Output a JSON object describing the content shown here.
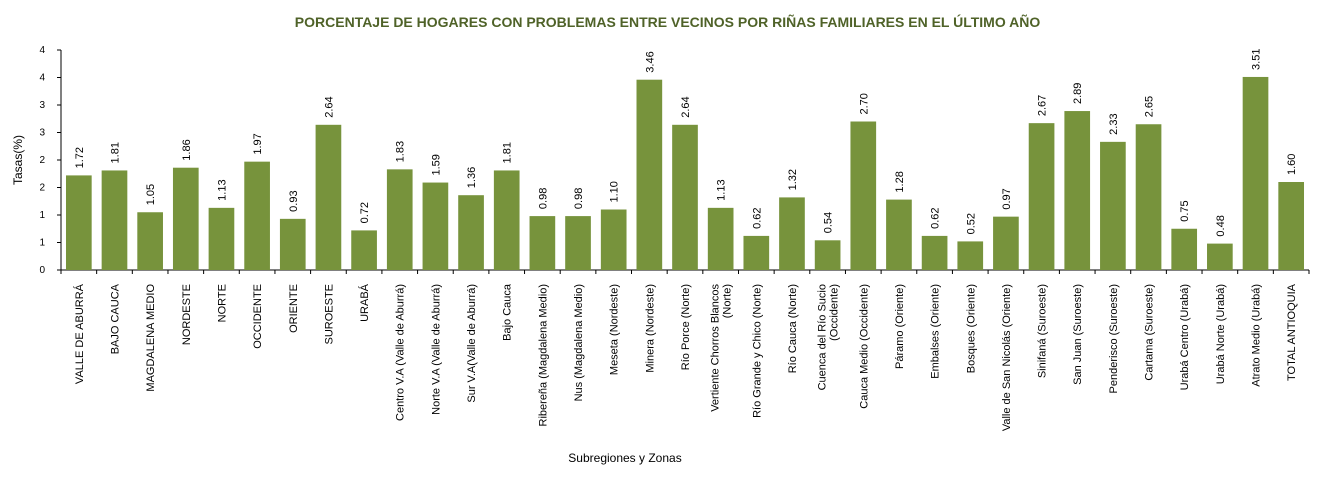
{
  "chart_data": {
    "type": "bar",
    "title": "PORCENTAJE DE HOGARES CON PROBLEMAS ENTRE VECINOS POR RIÑAS FAMILIARES EN EL ÚLTIMO AÑO",
    "xlabel": "Subregiones y Zonas",
    "ylabel": "Tasas(%)",
    "y_tick_labels": [
      "0",
      "1",
      "1",
      "2",
      "2",
      "3",
      "3",
      "4",
      "4"
    ],
    "ylim": [
      0,
      4
    ],
    "bar_color": "#77933c",
    "categories": [
      [
        "VALLE DE ABURRÁ"
      ],
      [
        "BAJO CAUCA"
      ],
      [
        "MAGDALENA MEDIO"
      ],
      [
        "NORDESTE"
      ],
      [
        "NORTE"
      ],
      [
        "OCCIDENTE"
      ],
      [
        "ORIENTE"
      ],
      [
        "SUROESTE"
      ],
      [
        "URABÁ"
      ],
      [
        "Centro V.A (Valle de Aburrá)"
      ],
      [
        "Norte V.A (Valle de Aburrá)"
      ],
      [
        "Sur V.A(Valle de Aburrá)"
      ],
      [
        "Bajo Cauca"
      ],
      [
        "Ribereña  (Magdalena Medio)"
      ],
      [
        "Nus  (Magdalena Medio)"
      ],
      [
        "Meseta  (Nordeste)"
      ],
      [
        "Minera  (Nordeste)"
      ],
      [
        "Río Porce   (Norte)"
      ],
      [
        "Vertiente Chorros Blancos",
        "(Norte)"
      ],
      [
        "Río Grande y Chico  (Norte)"
      ],
      [
        "Río Cauca  (Norte)"
      ],
      [
        "Cuenca del Río Sucio",
        "(Occidente)"
      ],
      [
        "Cauca Medio  (Occidente)"
      ],
      [
        "Páramo  (Oriente)"
      ],
      [
        "Embalses  (Oriente)"
      ],
      [
        "Bosques  (Oriente)"
      ],
      [
        "Valle de San Nicolás  (Oriente)"
      ],
      [
        "Sinifaná  (Suroeste)"
      ],
      [
        "San Juan  (Suroeste)"
      ],
      [
        "Penderisco  (Suroeste)"
      ],
      [
        "Cartama  (Suroeste)"
      ],
      [
        "Urabá Centro  (Urabá)"
      ],
      [
        "Urabá Norte  (Urabá)"
      ],
      [
        "Atrato Medio  (Urabá)"
      ],
      [
        "TOTAL ANTIOQUIA"
      ]
    ],
    "values": [
      1.72,
      1.81,
      1.05,
      1.86,
      1.13,
      1.97,
      0.93,
      2.64,
      0.72,
      1.83,
      1.59,
      1.36,
      1.81,
      0.98,
      0.98,
      1.1,
      3.46,
      2.64,
      1.13,
      0.62,
      1.32,
      0.54,
      2.7,
      1.28,
      0.62,
      0.52,
      0.97,
      2.67,
      2.89,
      2.33,
      2.65,
      0.75,
      0.48,
      3.51,
      1.6
    ],
    "data_labels": [
      "1.72",
      "1.81",
      "1.05",
      "1.86",
      "1.13",
      "1.97",
      "0.93",
      "2.64",
      "0.72",
      "1.83",
      "1.59",
      "1.36",
      "1.81",
      "0.98",
      "0.98",
      "1.10",
      "3.46",
      "2.64",
      "1.13",
      "0.62",
      "1.32",
      "0.54",
      "2.70",
      "1.28",
      "0.62",
      "0.52",
      "0.97",
      "2.67",
      "2.89",
      "2.33",
      "2.65",
      "0.75",
      "0.48",
      "3.51",
      "1.60"
    ],
    "grid": false,
    "legend": "none"
  }
}
